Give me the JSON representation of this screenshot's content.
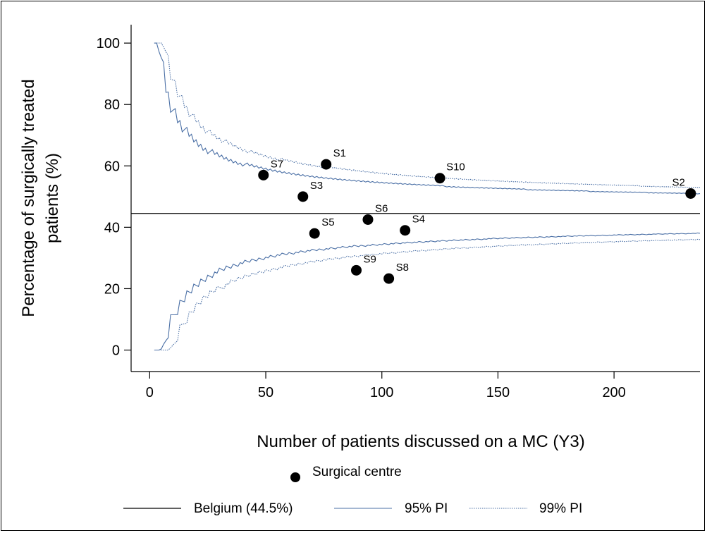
{
  "chart_data": {
    "type": "scatter",
    "xlabel": "Number of patients discussed on a MC (Y3)",
    "ylabel_lines": [
      "Percentage of surgically treated",
      "patients (%)"
    ],
    "xlim": [
      -8,
      237
    ],
    "ylim": [
      -7,
      106
    ],
    "x_ticks": [
      0,
      50,
      100,
      150,
      200
    ],
    "y_ticks": [
      0,
      20,
      40,
      60,
      80,
      100
    ],
    "x_tick_labels": [
      "0",
      "50",
      "100",
      "150",
      "200"
    ],
    "y_tick_labels": [
      "0",
      "20",
      "40",
      "60",
      "80",
      "100"
    ],
    "grid": false,
    "legend_position": "bottom",
    "colors": {
      "points": "#000000",
      "reference_line": "#000000",
      "pi95": "#4a6fa5",
      "pi99": "#4a6fa5"
    },
    "reference": {
      "name": "Belgium (44.5%)",
      "value": 44.5
    },
    "prediction_intervals": [
      {
        "name": "95% PI",
        "z": 1.96,
        "style": "solid"
      },
      {
        "name": "99% PI",
        "z": 2.576,
        "style": "dotted"
      }
    ],
    "series": [
      {
        "name": "Surgical centre",
        "points": [
          {
            "label": "S1",
            "x": 76,
            "y": 60.5
          },
          {
            "label": "S2",
            "x": 233,
            "y": 51
          },
          {
            "label": "S3",
            "x": 66,
            "y": 50
          },
          {
            "label": "S4",
            "x": 110,
            "y": 39
          },
          {
            "label": "S5",
            "x": 71,
            "y": 38
          },
          {
            "label": "S6",
            "x": 94,
            "y": 42.5
          },
          {
            "label": "S7",
            "x": 49,
            "y": 57
          },
          {
            "label": "S8",
            "x": 103,
            "y": 23.3
          },
          {
            "label": "S9",
            "x": 89,
            "y": 26
          },
          {
            "label": "S10",
            "x": 125,
            "y": 56
          }
        ]
      }
    ]
  }
}
